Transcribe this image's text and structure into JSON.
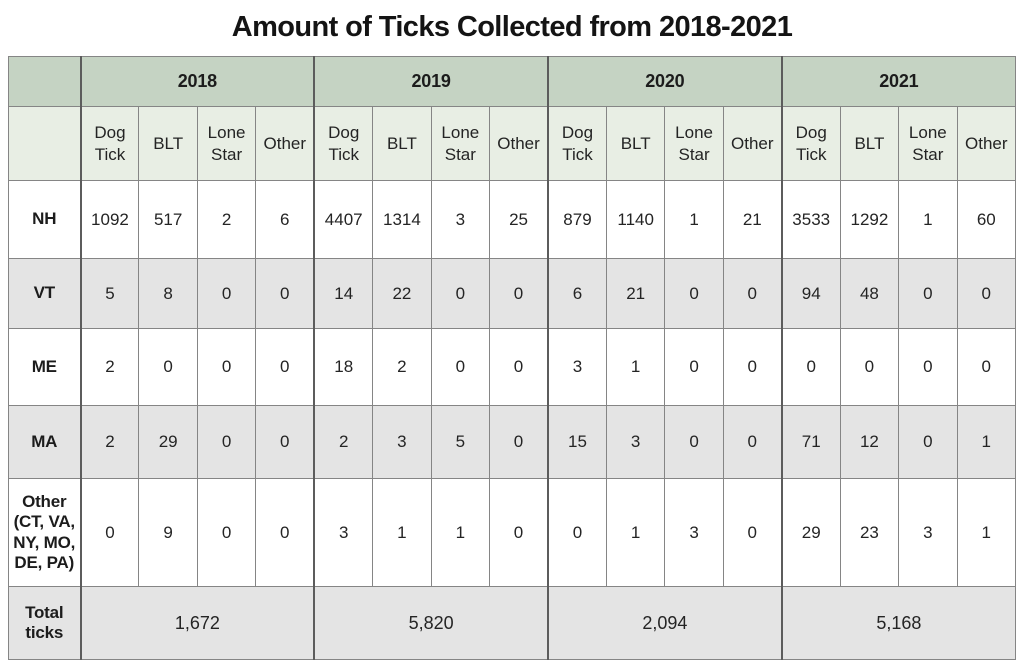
{
  "title": "Amount of Ticks Collected from 2018-2021",
  "colors": {
    "year_header_bg": "#c5d3c3",
    "subheader_bg": "#e8eee4",
    "alt_row_bg": "#e4e4e4",
    "total_row_bg": "#e4e4e4",
    "inner_border": "#858585",
    "group_border": "#5c5c5c",
    "text": "#242424"
  },
  "table": {
    "years": [
      "2018",
      "2019",
      "2020",
      "2021"
    ],
    "tick_types": [
      "Dog Tick",
      "BLT",
      "Lone Star",
      "Other"
    ],
    "rows": [
      {
        "label": "NH",
        "values": [
          1092,
          517,
          2,
          6,
          4407,
          1314,
          3,
          25,
          879,
          1140,
          1,
          21,
          3533,
          1292,
          1,
          60
        ]
      },
      {
        "label": "VT",
        "values": [
          5,
          8,
          0,
          0,
          14,
          22,
          0,
          0,
          6,
          21,
          0,
          0,
          94,
          48,
          0,
          0
        ]
      },
      {
        "label": "ME",
        "values": [
          2,
          0,
          0,
          0,
          18,
          2,
          0,
          0,
          3,
          1,
          0,
          0,
          0,
          0,
          0,
          0
        ]
      },
      {
        "label": "MA",
        "values": [
          2,
          29,
          0,
          0,
          2,
          3,
          5,
          0,
          15,
          3,
          0,
          0,
          71,
          12,
          0,
          1
        ]
      },
      {
        "label": "Other (CT, VA, NY, MO, DE, PA)",
        "values": [
          0,
          9,
          0,
          0,
          3,
          1,
          1,
          0,
          0,
          1,
          3,
          0,
          29,
          23,
          3,
          1
        ]
      }
    ],
    "total_row": {
      "label": "Total ticks",
      "values": [
        "1,672",
        "5,820",
        "2,094",
        "5,168"
      ]
    }
  },
  "chart_data": {
    "type": "table",
    "title": "Amount of Ticks Collected from 2018-2021",
    "column_groups": [
      "2018",
      "2019",
      "2020",
      "2021"
    ],
    "columns_per_group": [
      "Dog Tick",
      "BLT",
      "Lone Star",
      "Other"
    ],
    "row_labels": [
      "NH",
      "VT",
      "ME",
      "MA",
      "Other (CT, VA, NY, MO, DE, PA)",
      "Total ticks"
    ],
    "series": [
      {
        "name": "NH",
        "values": [
          1092,
          517,
          2,
          6,
          4407,
          1314,
          3,
          25,
          879,
          1140,
          1,
          21,
          3533,
          1292,
          1,
          60
        ]
      },
      {
        "name": "VT",
        "values": [
          5,
          8,
          0,
          0,
          14,
          22,
          0,
          0,
          6,
          21,
          0,
          0,
          94,
          48,
          0,
          0
        ]
      },
      {
        "name": "ME",
        "values": [
          2,
          0,
          0,
          0,
          18,
          2,
          0,
          0,
          3,
          1,
          0,
          0,
          0,
          0,
          0,
          0
        ]
      },
      {
        "name": "MA",
        "values": [
          2,
          29,
          0,
          0,
          2,
          3,
          5,
          0,
          15,
          3,
          0,
          0,
          71,
          12,
          0,
          1
        ]
      },
      {
        "name": "Other (CT, VA, NY, MO, DE, PA)",
        "values": [
          0,
          9,
          0,
          0,
          3,
          1,
          1,
          0,
          0,
          1,
          3,
          0,
          29,
          23,
          3,
          1
        ]
      }
    ],
    "totals_by_year": {
      "2018": 1672,
      "2019": 5820,
      "2020": 2094,
      "2021": 5168
    }
  }
}
